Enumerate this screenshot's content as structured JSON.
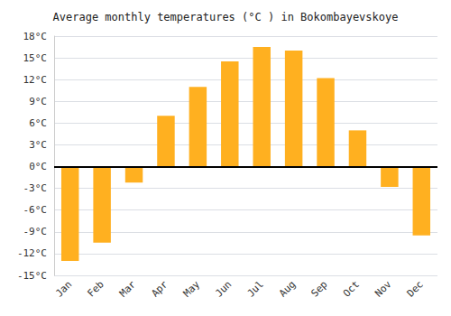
{
  "chart_data": {
    "type": "bar",
    "title": "Average monthly temperatures (°C ) in Bokombayevskoye",
    "categories": [
      "Jan",
      "Feb",
      "Mar",
      "Apr",
      "May",
      "Jun",
      "Jul",
      "Aug",
      "Sep",
      "Oct",
      "Nov",
      "Dec"
    ],
    "values": [
      -13,
      -10.5,
      -2.2,
      7,
      11,
      14.5,
      16.5,
      16,
      12.2,
      5,
      -2.8,
      -9.5
    ],
    "color": "#FFB020",
    "ylim": [
      -15,
      18
    ],
    "yticks": [
      {
        "value": -15,
        "label": "-15°C"
      },
      {
        "value": -12,
        "label": "-12°C"
      },
      {
        "value": -9,
        "label": "-9°C"
      },
      {
        "value": -6,
        "label": "-6°C"
      },
      {
        "value": -3,
        "label": "-3°C"
      },
      {
        "value": 0,
        "label": "0°C"
      },
      {
        "value": 3,
        "label": "3°C"
      },
      {
        "value": 6,
        "label": "6°C"
      },
      {
        "value": 9,
        "label": "9°C"
      },
      {
        "value": 12,
        "label": "12°C"
      },
      {
        "value": 15,
        "label": "15°C"
      },
      {
        "value": 18,
        "label": "18°C"
      }
    ],
    "grid": true
  }
}
